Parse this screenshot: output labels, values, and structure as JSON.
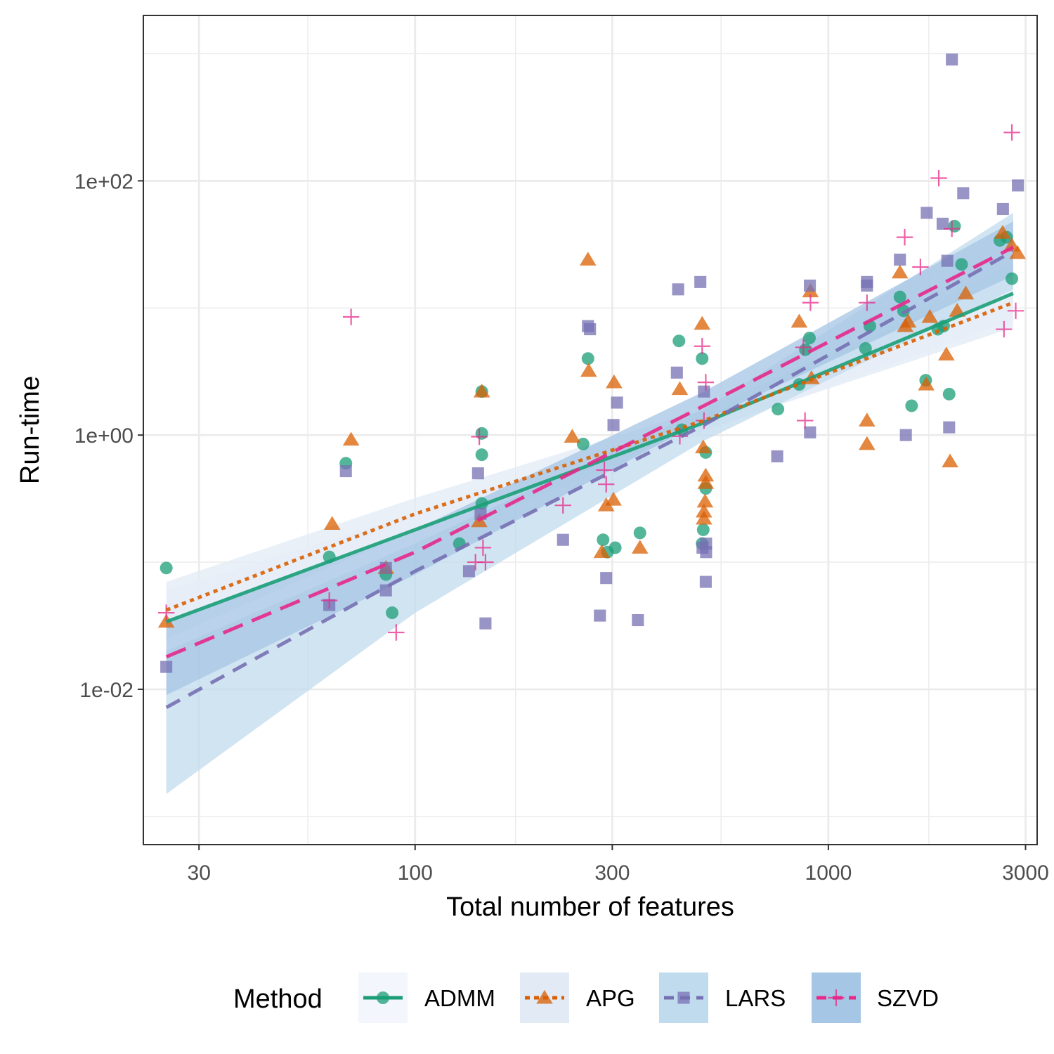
{
  "chart_data": {
    "type": "scatter",
    "xlabel": "Total number of features",
    "ylabel": "Run-time",
    "x_scale": "log10",
    "y_scale": "log10",
    "xlim": [
      22,
      3200
    ],
    "ylim": [
      0.0006,
      2000
    ],
    "x_ticks": [
      {
        "value": 30,
        "label": "30"
      },
      {
        "value": 100,
        "label": "100"
      },
      {
        "value": 300,
        "label": "300"
      },
      {
        "value": 1000,
        "label": "1000"
      },
      {
        "value": 3000,
        "label": "3000"
      }
    ],
    "y_ticks": [
      {
        "value": 0.01,
        "label": "1e-02"
      },
      {
        "value": 1,
        "label": "1e+00"
      },
      {
        "value": 100,
        "label": "1e+02"
      }
    ],
    "legend": {
      "title": "Method",
      "position": "bottom"
    },
    "series": [
      {
        "name": "ADMM",
        "color": "#1b9e77",
        "shape": "circle",
        "line": "solid",
        "band_color": "#f4f6fd",
        "fit": {
          "x": [
            25,
            100,
            500,
            2800
          ],
          "y": [
            0.034,
            0.18,
            1.25,
            13
          ]
        },
        "band_lower": [
          0.02,
          0.14,
          1.05,
          8
        ],
        "band_upper": [
          0.06,
          0.24,
          1.5,
          22
        ],
        "points": [
          [
            25,
            0.09
          ],
          [
            62,
            0.11
          ],
          [
            68,
            0.6
          ],
          [
            85,
            0.08
          ],
          [
            88,
            0.04
          ],
          [
            128,
            0.14
          ],
          [
            145,
            0.29
          ],
          [
            145,
            0.7
          ],
          [
            145,
            1.03
          ],
          [
            145,
            2.2
          ],
          [
            255,
            0.85
          ],
          [
            262,
            4.0
          ],
          [
            285,
            0.15
          ],
          [
            292,
            0.12
          ],
          [
            305,
            0.13
          ],
          [
            350,
            0.17
          ],
          [
            435,
            5.5
          ],
          [
            442,
            1.1
          ],
          [
            495,
            4.0
          ],
          [
            495,
            0.14
          ],
          [
            498,
            0.18
          ],
          [
            505,
            0.38
          ],
          [
            505,
            0.73
          ],
          [
            755,
            1.6
          ],
          [
            850,
            2.5
          ],
          [
            880,
            4.7
          ],
          [
            900,
            5.8
          ],
          [
            1230,
            4.8
          ],
          [
            1260,
            7.2
          ],
          [
            1490,
            12.2
          ],
          [
            1520,
            9.5
          ],
          [
            1590,
            1.7
          ],
          [
            1720,
            2.7
          ],
          [
            1840,
            6.8
          ],
          [
            1900,
            7.2
          ],
          [
            1960,
            2.1
          ],
          [
            2020,
            44
          ],
          [
            2100,
            22
          ],
          [
            2600,
            34
          ],
          [
            2700,
            36
          ],
          [
            2780,
            17
          ]
        ]
      },
      {
        "name": "APG",
        "color": "#d95f02",
        "shape": "triangle",
        "line": "dotted",
        "band_color": "#e2ebf5",
        "fit": {
          "x": [
            25,
            100,
            500,
            2800
          ],
          "y": [
            0.042,
            0.24,
            1.3,
            11
          ]
        },
        "band_lower": [
          0.025,
          0.18,
          1.1,
          7
        ],
        "band_upper": [
          0.07,
          0.32,
          1.6,
          18
        ],
        "points": [
          [
            25,
            0.034
          ],
          [
            63,
            0.2
          ],
          [
            70,
            0.92
          ],
          [
            85,
            0.09
          ],
          [
            143,
            0.21
          ],
          [
            145,
            2.2
          ],
          [
            240,
            0.97
          ],
          [
            262,
            24
          ],
          [
            263,
            3.2
          ],
          [
            283,
            0.12
          ],
          [
            290,
            0.28
          ],
          [
            302,
            0.31
          ],
          [
            303,
            2.6
          ],
          [
            350,
            0.13
          ],
          [
            437,
            2.3
          ],
          [
            495,
            7.5
          ],
          [
            498,
            0.8
          ],
          [
            500,
            0.22
          ],
          [
            500,
            0.25
          ],
          [
            503,
            0.3
          ],
          [
            505,
            0.42
          ],
          [
            505,
            0.48
          ],
          [
            850,
            7.8
          ],
          [
            905,
            13.5
          ],
          [
            910,
            2.8
          ],
          [
            1240,
            1.3
          ],
          [
            1240,
            0.85
          ],
          [
            1490,
            19
          ],
          [
            1535,
            7.2
          ],
          [
            1560,
            7.8
          ],
          [
            1725,
            2.5
          ],
          [
            1760,
            8.5
          ],
          [
            1930,
            4.3
          ],
          [
            1970,
            0.62
          ],
          [
            2050,
            9.5
          ],
          [
            2150,
            13
          ],
          [
            2640,
            39
          ],
          [
            2780,
            31
          ],
          [
            2870,
            27
          ]
        ]
      },
      {
        "name": "LARS",
        "color": "#7570b3",
        "shape": "square",
        "line": "dashed",
        "band_color": "#c1dbee",
        "fit": {
          "x": [
            25,
            100,
            500,
            2800
          ],
          "y": [
            0.0072,
            0.085,
            1.2,
            28
          ]
        },
        "band_lower": [
          0.0015,
          0.04,
          0.9,
          14
        ],
        "band_upper": [
          0.02,
          0.14,
          1.6,
          56
        ],
        "points": [
          [
            25,
            0.015
          ],
          [
            62,
            0.046
          ],
          [
            68,
            0.52
          ],
          [
            85,
            0.06
          ],
          [
            85,
            0.09
          ],
          [
            135,
            0.085
          ],
          [
            142,
            0.5
          ],
          [
            144,
            0.24
          ],
          [
            148,
            0.033
          ],
          [
            228,
            0.15
          ],
          [
            262,
            7.2
          ],
          [
            265,
            6.8
          ],
          [
            280,
            0.038
          ],
          [
            290,
            0.075
          ],
          [
            302,
            1.2
          ],
          [
            308,
            1.8
          ],
          [
            346,
            0.035
          ],
          [
            430,
            3.1
          ],
          [
            433,
            14
          ],
          [
            490,
            16
          ],
          [
            496,
            0.13
          ],
          [
            500,
            2.2
          ],
          [
            505,
            0.07
          ],
          [
            506,
            0.12
          ],
          [
            506,
            0.14
          ],
          [
            752,
            0.68
          ],
          [
            902,
            15
          ],
          [
            903,
            1.05
          ],
          [
            1240,
            15
          ],
          [
            1240,
            16
          ],
          [
            1490,
            24
          ],
          [
            1540,
            1.0
          ],
          [
            1730,
            56
          ],
          [
            1890,
            46
          ],
          [
            1940,
            23.5
          ],
          [
            1960,
            1.15
          ],
          [
            1990,
            900
          ],
          [
            2120,
            80
          ],
          [
            2645,
            60
          ],
          [
            2875,
            92
          ]
        ]
      },
      {
        "name": "SZVD",
        "color": "#e7298a",
        "shape": "cross",
        "line": "longdash",
        "band_color": "#a5c6e4",
        "fit": {
          "x": [
            25,
            100,
            500,
            2800
          ],
          "y": [
            0.018,
            0.12,
            1.7,
            30
          ]
        },
        "band_lower": [
          0.009,
          0.08,
          1.3,
          18
        ],
        "band_upper": [
          0.035,
          0.18,
          2.2,
          48
        ],
        "points": [
          [
            25,
            0.04
          ],
          [
            62,
            0.05
          ],
          [
            70,
            8.5
          ],
          [
            90,
            0.028
          ],
          [
            140,
            0.1
          ],
          [
            143,
            0.97
          ],
          [
            146,
            0.13
          ],
          [
            148,
            0.1
          ],
          [
            228,
            0.28
          ],
          [
            287,
            0.53
          ],
          [
            290,
            0.41
          ],
          [
            437,
            0.98
          ],
          [
            495,
            5.0
          ],
          [
            500,
            1.3
          ],
          [
            505,
            2.6
          ],
          [
            870,
            4.9
          ],
          [
            878,
            1.3
          ],
          [
            905,
            11
          ],
          [
            1240,
            11
          ],
          [
            1530,
            36
          ],
          [
            1670,
            21
          ],
          [
            1850,
            105
          ],
          [
            1990,
            42
          ],
          [
            2660,
            6.8
          ],
          [
            2780,
            240
          ],
          [
            2840,
            9.5
          ]
        ]
      }
    ]
  }
}
